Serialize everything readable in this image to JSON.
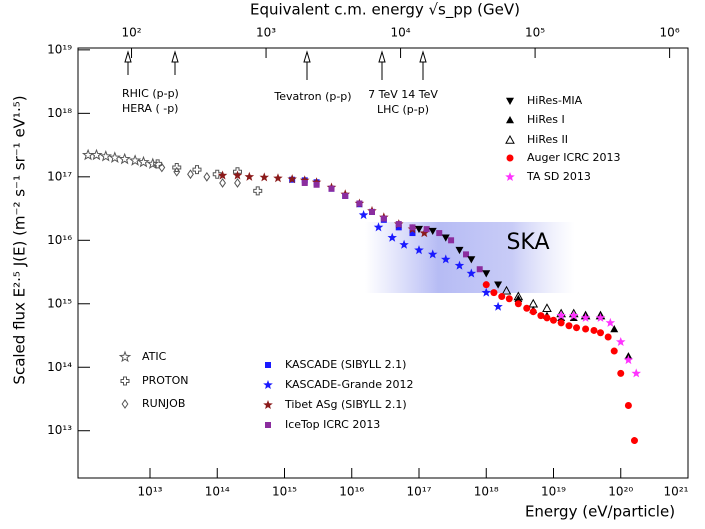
{
  "chart_data": {
    "type": "scatter",
    "title": "Equivalent c.m. energy  √s_pp   (GeV)",
    "x_label": "Energy    (eV/particle)",
    "y_label": "Scaled flux   E²·⁵ J(E)   (m⁻² s⁻¹ sr⁻¹ eV¹·⁵)",
    "xscale": "log",
    "yscale": "log",
    "xlim": [
      850000000000.0,
      1e+21
    ],
    "ylim": [
      1800000000000.0,
      1.07e+19
    ],
    "xticks": [
      {
        "value": 10000000000000.0,
        "label": "10¹³"
      },
      {
        "value": 100000000000000.0,
        "label": "10¹⁴"
      },
      {
        "value": 1000000000000000.0,
        "label": "10¹⁵"
      },
      {
        "value": 1e+16,
        "label": "10¹⁶"
      },
      {
        "value": 1e+17,
        "label": "10¹⁷"
      },
      {
        "value": 1e+18,
        "label": "10¹⁸"
      },
      {
        "value": 1e+19,
        "label": "10¹⁹"
      },
      {
        "value": 1e+20,
        "label": "10²⁰"
      },
      {
        "value": 1e+21,
        "label": "10²¹"
      }
    ],
    "yticks": [
      {
        "value": 10000000000000.0,
        "label": "10¹³"
      },
      {
        "value": 100000000000000.0,
        "label": "10¹⁴"
      },
      {
        "value": 1000000000000000.0,
        "label": "10¹⁵"
      },
      {
        "value": 1e+16,
        "label": "10¹⁶"
      },
      {
        "value": 1e+17,
        "label": "10¹⁷"
      },
      {
        "value": 1e+18,
        "label": "10¹⁸"
      },
      {
        "value": 1e+19,
        "label": "10¹⁹"
      }
    ],
    "x2lim": [
      40,
      1370000
    ],
    "x2ticks": [
      {
        "value": 100,
        "label": "10²"
      },
      {
        "value": 1000,
        "label": "10³"
      },
      {
        "value": 10000,
        "label": "10⁴"
      },
      {
        "value": 100000,
        "label": "10⁵"
      },
      {
        "value": 1000000,
        "label": "10⁶"
      }
    ],
    "annotations": [
      "RHIC (p-p)",
      "HERA ( -p)",
      "Tevatron (p-p)",
      "7 TeV 14 TeV",
      "LHC (p-p)",
      "SKA"
    ],
    "series": [
      {
        "name": "ATIC",
        "color": "#555555",
        "marker": "star-open",
        "x": [
          1200000000000.0,
          1600000000000.0,
          2200000000000.0,
          3000000000000.0,
          4200000000000.0,
          6000000000000.0,
          8000000000000.0,
          11000000000000.0
        ],
        "values": [
          2.2e+17,
          2.2e+17,
          2.1e+17,
          2e+17,
          1.9e+17,
          1.8e+17,
          1.7e+17,
          1.6e+17
        ]
      },
      {
        "name": "PROTON",
        "color": "#555555",
        "marker": "cross-open",
        "x": [
          13000000000000.0,
          25000000000000.0,
          50000000000000.0,
          100000000000000.0,
          200000000000000.0,
          400000000000000.0
        ],
        "values": [
          1.6e+17,
          1.4e+17,
          1.3e+17,
          1.1e+17,
          1.2e+17,
          6e+16
        ]
      },
      {
        "name": "RUNJOB",
        "color": "#555555",
        "marker": "diamond-open",
        "x": [
          15000000000000.0,
          25000000000000.0,
          40000000000000.0,
          70000000000000.0,
          120000000000000.0,
          200000000000000.0
        ],
        "values": [
          1.4e+17,
          1.2e+17,
          1.1e+17,
          1e+17,
          8e+16,
          8e+16
        ]
      },
      {
        "name": "KASCADE (SIBYLL 2.1)",
        "color": "#1a1aff",
        "marker": "square",
        "x": [
          1300000000000000.0,
          2000000000000000.0,
          3000000000000000.0,
          5000000000000000.0,
          8000000000000000.0,
          1.3e+16,
          2e+16,
          3e+16,
          5e+16,
          8e+16
        ],
        "values": [
          9e+16,
          8.8e+16,
          8.2e+16,
          6.5e+16,
          5e+16,
          3.7e+16,
          2.8e+16,
          2.1e+16,
          1.6e+16,
          1.3e+16
        ]
      },
      {
        "name": "KASCADE-Grande 2012",
        "color": "#1a1aff",
        "marker": "star",
        "x": [
          1.5e+16,
          2.5e+16,
          4e+16,
          6e+16,
          1e+17,
          1.6e+17,
          2.5e+17,
          4e+17,
          6e+17,
          1e+18,
          1.5e+18
        ],
        "values": [
          2.5e+16,
          1.6e+16,
          1.1e+16,
          8500000000000000.0,
          7000000000000000.0,
          6000000000000000.0,
          5000000000000000.0,
          4000000000000000.0,
          3000000000000000.0,
          1500000000000000.0,
          900000000000000.0
        ]
      },
      {
        "name": "Tibet ASg (SIBYLL 2.1)",
        "color": "#8b1a1a",
        "marker": "star",
        "x": [
          120000000000000.0,
          200000000000000.0,
          300000000000000.0,
          500000000000000.0,
          800000000000000.0,
          1300000000000000.0,
          2000000000000000.0,
          3000000000000000.0,
          5000000000000000.0,
          8000000000000000.0,
          1.3e+16,
          2e+16,
          3e+16,
          5e+16,
          8e+16,
          1.2e+17
        ],
        "values": [
          1.05e+17,
          1.05e+17,
          1e+17,
          9.8e+16,
          9.5e+16,
          9.2e+16,
          8.8e+16,
          8.2e+16,
          6.8e+16,
          5.3e+16,
          3.8e+16,
          2.9e+16,
          2.3e+16,
          1.8e+16,
          1.5e+16,
          1.3e+16
        ]
      },
      {
        "name": "IceTop ICRC 2013",
        "color": "#8b2d9e",
        "marker": "square",
        "x": [
          2000000000000000.0,
          3000000000000000.0,
          5000000000000000.0,
          8000000000000000.0,
          1.3e+16,
          2e+16,
          3e+16,
          5e+16,
          8e+16,
          1.3e+17,
          2e+17,
          3e+17,
          5e+17,
          8e+17
        ],
        "values": [
          8e+16,
          7.5e+16,
          6.5e+16,
          5e+16,
          3.8e+16,
          2.8e+16,
          2.2e+16,
          1.8e+16,
          1.6e+16,
          1.5e+16,
          1.3e+16,
          1e+16,
          6000000000000000.0,
          3500000000000000.0
        ]
      },
      {
        "name": "HiRes-MIA",
        "color": "#000000",
        "marker": "triangle-down",
        "x": [
          1e+17,
          1.6e+17,
          2.5e+17,
          4e+17,
          6e+17,
          1e+18,
          1.5e+18
        ],
        "values": [
          1.5e+16,
          1.4e+16,
          1.1e+16,
          7000000000000000.0,
          5000000000000000.0,
          3000000000000000.0,
          2000000000000000.0
        ]
      },
      {
        "name": "HiRes I",
        "color": "#000000",
        "marker": "triangle",
        "x": [
          3e+18,
          5e+18,
          8e+18,
          1.3e+19,
          2e+19,
          3e+19,
          5e+19,
          8e+19,
          1.3e+20
        ],
        "values": [
          1200000000000000.0,
          800000000000000.0,
          650000000000000.0,
          600000000000000.0,
          600000000000000.0,
          650000000000000.0,
          650000000000000.0,
          400000000000000.0,
          150000000000000.0
        ]
      },
      {
        "name": "HiRes II",
        "color": "#000000",
        "marker": "triangle-open",
        "x": [
          2e+18,
          3e+18,
          5e+18,
          8e+18,
          1.3e+19,
          2e+19,
          3e+19,
          5e+19
        ],
        "values": [
          1600000000000000.0,
          1300000000000000.0,
          1000000000000000.0,
          850000000000000.0,
          700000000000000.0,
          700000000000000.0,
          650000000000000.0,
          650000000000000.0
        ]
      },
      {
        "name": "Auger ICRC 2013",
        "color": "#ff0000",
        "marker": "circle",
        "x": [
          1e+18,
          1.3e+18,
          1.7e+18,
          2.2e+18,
          3e+18,
          4e+18,
          5e+18,
          6.5e+18,
          8e+18,
          1e+19,
          1.3e+19,
          1.7e+19,
          2.2e+19,
          3e+19,
          4e+19,
          5e+19,
          6.5e+19,
          8e+19,
          1e+20,
          1.3e+20,
          1.6e+20
        ],
        "values": [
          2000000000000000.0,
          1500000000000000.0,
          1300000000000000.0,
          1200000000000000.0,
          1000000000000000.0,
          850000000000000.0,
          750000000000000.0,
          650000000000000.0,
          600000000000000.0,
          550000000000000.0,
          500000000000000.0,
          450000000000000.0,
          420000000000000.0,
          400000000000000.0,
          380000000000000.0,
          350000000000000.0,
          300000000000000.0,
          180000000000000.0,
          80000000000000.0,
          25000000000000.0,
          7000000000000.0
        ]
      },
      {
        "name": "TA SD 2013",
        "color": "#ff33ff",
        "marker": "star",
        "x": [
          1.3e+19,
          2e+19,
          3e+19,
          5e+19,
          7e+19,
          1e+20,
          1.3e+20,
          1.7e+20
        ],
        "values": [
          650000000000000.0,
          650000000000000.0,
          600000000000000.0,
          600000000000000.0,
          500000000000000.0,
          250000000000000.0,
          130000000000000.0,
          80000000000000.0
        ]
      }
    ]
  }
}
